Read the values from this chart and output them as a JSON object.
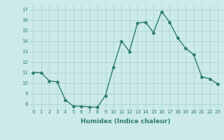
{
  "x": [
    0,
    1,
    2,
    3,
    4,
    5,
    6,
    7,
    8,
    9,
    10,
    11,
    12,
    13,
    14,
    15,
    16,
    17,
    18,
    19,
    20,
    21,
    22,
    23
  ],
  "y": [
    11,
    11,
    10.2,
    10.1,
    8.4,
    7.8,
    7.8,
    7.7,
    7.7,
    8.8,
    11.5,
    14.0,
    13.0,
    15.7,
    15.8,
    14.8,
    16.8,
    15.8,
    14.3,
    13.3,
    12.7,
    10.6,
    10.4,
    9.9
  ],
  "xlabel": "Humidex (Indice chaleur)",
  "ylim": [
    7.5,
    17.5
  ],
  "xlim": [
    -0.5,
    23.5
  ],
  "yticks": [
    8,
    9,
    10,
    11,
    12,
    13,
    14,
    15,
    16,
    17
  ],
  "xticks": [
    0,
    1,
    2,
    3,
    4,
    5,
    6,
    7,
    8,
    9,
    10,
    11,
    12,
    13,
    14,
    15,
    16,
    17,
    18,
    19,
    20,
    21,
    22,
    23
  ],
  "line_color": "#2e7d6e",
  "marker": "D",
  "markersize": 2,
  "bg_color": "#cceaea",
  "grid_color": "#aad4d4",
  "linewidth": 1.0,
  "tick_fontsize": 5,
  "xlabel_fontsize": 6.5
}
